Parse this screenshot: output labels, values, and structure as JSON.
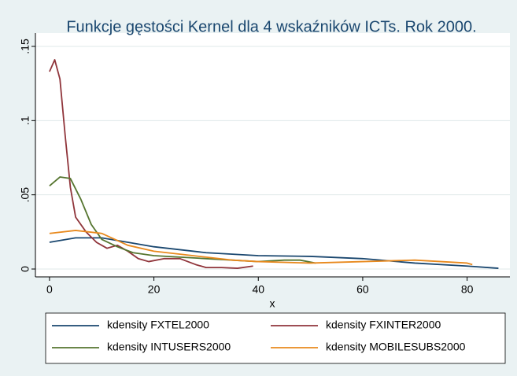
{
  "chart_data": {
    "type": "line",
    "title": "Funkcje gęstości Kernel dla 4 wskaźników ICTs. Rok 2000.",
    "xlabel": "x",
    "xlim": [
      -2.7,
      88.2
    ],
    "xticks": [
      0,
      20,
      40,
      60,
      80
    ],
    "ylim": [
      -0.0053,
      0.159
    ],
    "yticks": [
      0,
      {
        "value": 0.05,
        "label": ".05"
      },
      {
        "value": 0.1,
        "label": ".1"
      },
      {
        "value": 0.15,
        "label": ".15"
      }
    ],
    "grid": true,
    "legend": "bottom",
    "series": [
      {
        "name": "kdensity FXTEL2000",
        "color": "#1a476f",
        "x": [
          0,
          5,
          10,
          15,
          20,
          30,
          40,
          50,
          60,
          70,
          80,
          86
        ],
        "values": [
          0.018,
          0.021,
          0.021,
          0.018,
          0.015,
          0.011,
          0.009,
          0.0085,
          0.007,
          0.004,
          0.002,
          0.0005
        ]
      },
      {
        "name": "kdensity FXINTER2000",
        "color": "#90353b",
        "x": [
          0,
          1,
          2,
          3,
          4,
          5,
          7,
          9,
          11,
          13,
          15,
          17,
          19,
          22,
          25,
          28,
          30,
          33,
          36,
          39
        ],
        "values": [
          0.133,
          0.141,
          0.128,
          0.09,
          0.055,
          0.035,
          0.025,
          0.018,
          0.014,
          0.016,
          0.012,
          0.007,
          0.005,
          0.007,
          0.007,
          0.003,
          0.001,
          0.001,
          0.0005,
          0.002
        ]
      },
      {
        "name": "kdensity INTUSERS2000",
        "color": "#55752f",
        "x": [
          0,
          2,
          4,
          6,
          8,
          10,
          13,
          16,
          20,
          25,
          30,
          35,
          40,
          45,
          48,
          51
        ],
        "values": [
          0.056,
          0.062,
          0.061,
          0.047,
          0.03,
          0.02,
          0.015,
          0.011,
          0.009,
          0.008,
          0.007,
          0.006,
          0.005,
          0.006,
          0.006,
          0.004
        ]
      },
      {
        "name": "kdensity MOBILESUBS2000",
        "color": "#e8891d",
        "x": [
          0,
          5,
          10,
          15,
          20,
          25,
          30,
          35,
          40,
          50,
          60,
          70,
          80,
          81
        ],
        "values": [
          0.024,
          0.026,
          0.024,
          0.016,
          0.012,
          0.01,
          0.008,
          0.006,
          0.005,
          0.004,
          0.005,
          0.006,
          0.004,
          0.003
        ]
      }
    ]
  }
}
